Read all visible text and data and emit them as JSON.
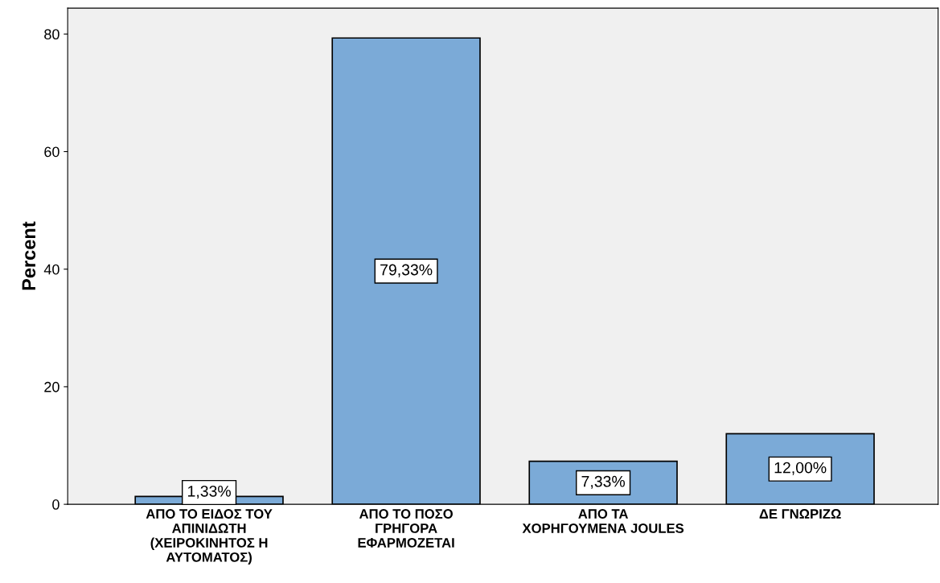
{
  "chart_data": {
    "type": "bar",
    "ylabel": "Percent",
    "categories": [
      "ΑΠΟ ΤΟ ΕΙΔΟΣ ΤΟΥ\nΑΠΙΝΙΔΩΤΗ\n(ΧΕΙΡΟΚΙΝΗΤΟΣ Η\nΑΥΤΟΜΑΤΟΣ)",
      "ΑΠΟ ΤΟ ΠΟΣΟ\nΓΡΗΓΟΡΑ\nΕΦΑΡΜΟΖΕΤΑΙ",
      "ΑΠΟ ΤΑ\nΧΟΡΗΓΟΥΜΕΝΑ JOULES",
      "ΔΕ ΓΝΩΡΙΖΩ"
    ],
    "values": [
      1.33,
      79.33,
      7.33,
      12.0
    ],
    "value_labels": [
      "1,33%",
      "79,33%",
      "7,33%",
      "12,00%"
    ],
    "color": "#7baad7",
    "ylim": [
      0,
      84.4
    ],
    "yticks": [
      0,
      20,
      40,
      60,
      80
    ],
    "grid": false,
    "legend": false
  }
}
